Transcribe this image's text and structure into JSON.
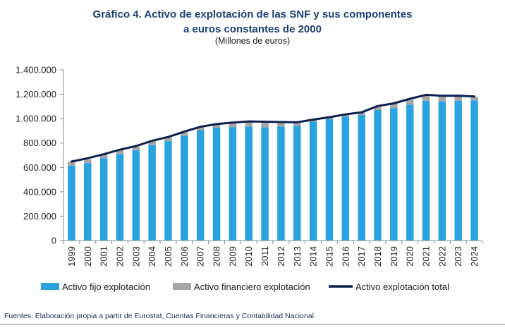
{
  "figure": {
    "title_line1": "Gráfico 4. Activo de explotación de las SNF y sus componentes",
    "title_line2": "a euros constantes de 2000",
    "subtitle": "(Millones de euros)",
    "source": "Fuentes: Elaboración propia a partir de Eurostat, Cuentas Financieras y Contabilidad Nacional."
  },
  "colors": {
    "fixed": "#29a3e0",
    "financial": "#a6a6a6",
    "total": "#0d1f4d",
    "title": "#1b3f73"
  },
  "chart_data": {
    "type": "bar",
    "stacked": true,
    "title": "Gráfico 4. Activo de explotación de las SNF y sus componentes a euros constantes de 2000",
    "xlabel": "",
    "ylabel": "",
    "ylim": [
      0,
      1400000
    ],
    "yticks": [
      0,
      200000,
      400000,
      600000,
      800000,
      1000000,
      1200000,
      1400000
    ],
    "ytick_labels": [
      "0",
      "200.000",
      "400.000",
      "600.000",
      "800.000",
      "1.000.000",
      "1.200.000",
      "1.400.000"
    ],
    "categories": [
      "1999",
      "2000",
      "2001",
      "2002",
      "2003",
      "2004",
      "2005",
      "2006",
      "2007",
      "2008",
      "2009",
      "2010",
      "2011",
      "2012",
      "2013",
      "2014",
      "2015",
      "2016",
      "2017",
      "2018",
      "2019",
      "2020",
      "2021",
      "2022",
      "2023",
      "2024"
    ],
    "series": [
      {
        "name": "Activo fijo explotación",
        "type": "bar",
        "values": [
          615000,
          635000,
          675000,
          710000,
          740000,
          785000,
          815000,
          860000,
          905000,
          925000,
          930000,
          935000,
          930000,
          935000,
          940000,
          975000,
          995000,
          1015000,
          1030000,
          1070000,
          1085000,
          1115000,
          1145000,
          1140000,
          1145000,
          1150000
        ]
      },
      {
        "name": "Activo financiero explotación",
        "type": "bar",
        "values": [
          30000,
          30000,
          30000,
          32000,
          30000,
          30000,
          30000,
          30000,
          30000,
          32000,
          38000,
          43000,
          45000,
          38000,
          33000,
          15000,
          15000,
          20000,
          20000,
          30000,
          35000,
          40000,
          50000,
          45000,
          45000,
          30000
        ]
      },
      {
        "name": "Activo explotación total",
        "type": "line",
        "values": [
          648000,
          675000,
          708000,
          745000,
          775000,
          818000,
          850000,
          893000,
          933000,
          955000,
          967000,
          977000,
          975000,
          972000,
          970000,
          992000,
          1012000,
          1035000,
          1052000,
          1103000,
          1125000,
          1163000,
          1195000,
          1187000,
          1188000,
          1182000
        ]
      }
    ],
    "legend": "bottom",
    "grid": false
  }
}
